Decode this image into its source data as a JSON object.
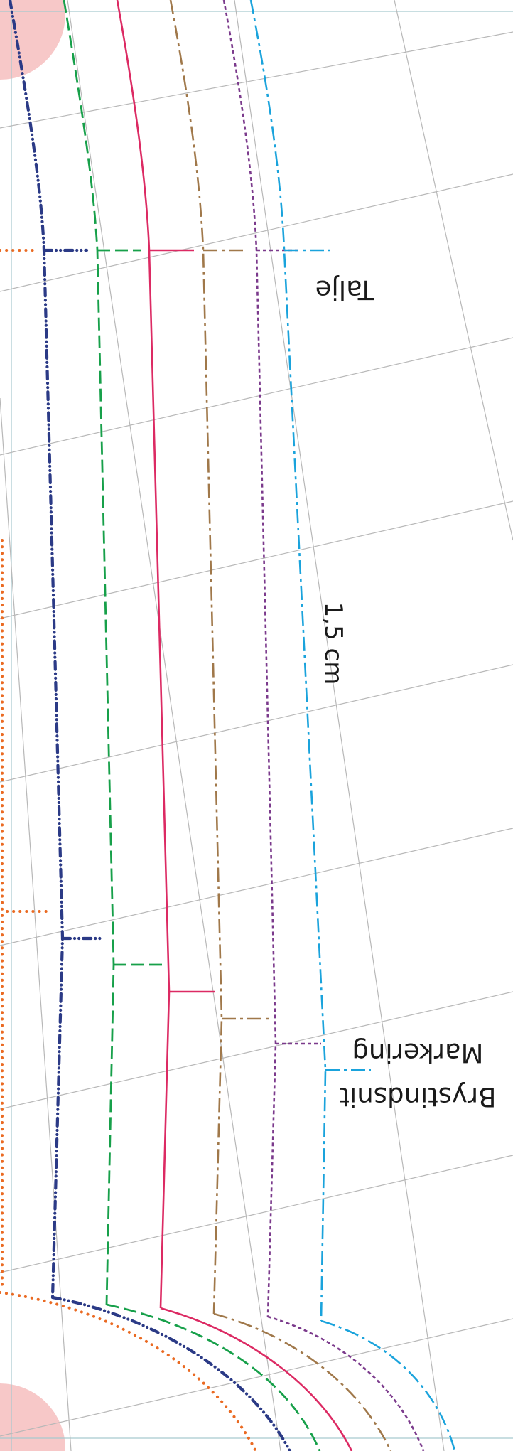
{
  "labels": {
    "waist": "Talje",
    "bust_line_1": "Brystindsnit",
    "bust_line_2": "Markering",
    "measurement": "1,5 cm"
  },
  "colors": {
    "grid": "#b8b8b8",
    "frame": "#a6c9cf",
    "corner_mark": "#f7c8c8",
    "orange_dotted": "#ea6a22",
    "navy_dashdot": "#2b3a86",
    "green_dashed": "#17a04a",
    "crimson_solid": "#dc2a63",
    "brown_dashdot": "#a0784a",
    "purple_dotted": "#7b3a8c",
    "cyan_dashdot": "#1aa3dc"
  }
}
